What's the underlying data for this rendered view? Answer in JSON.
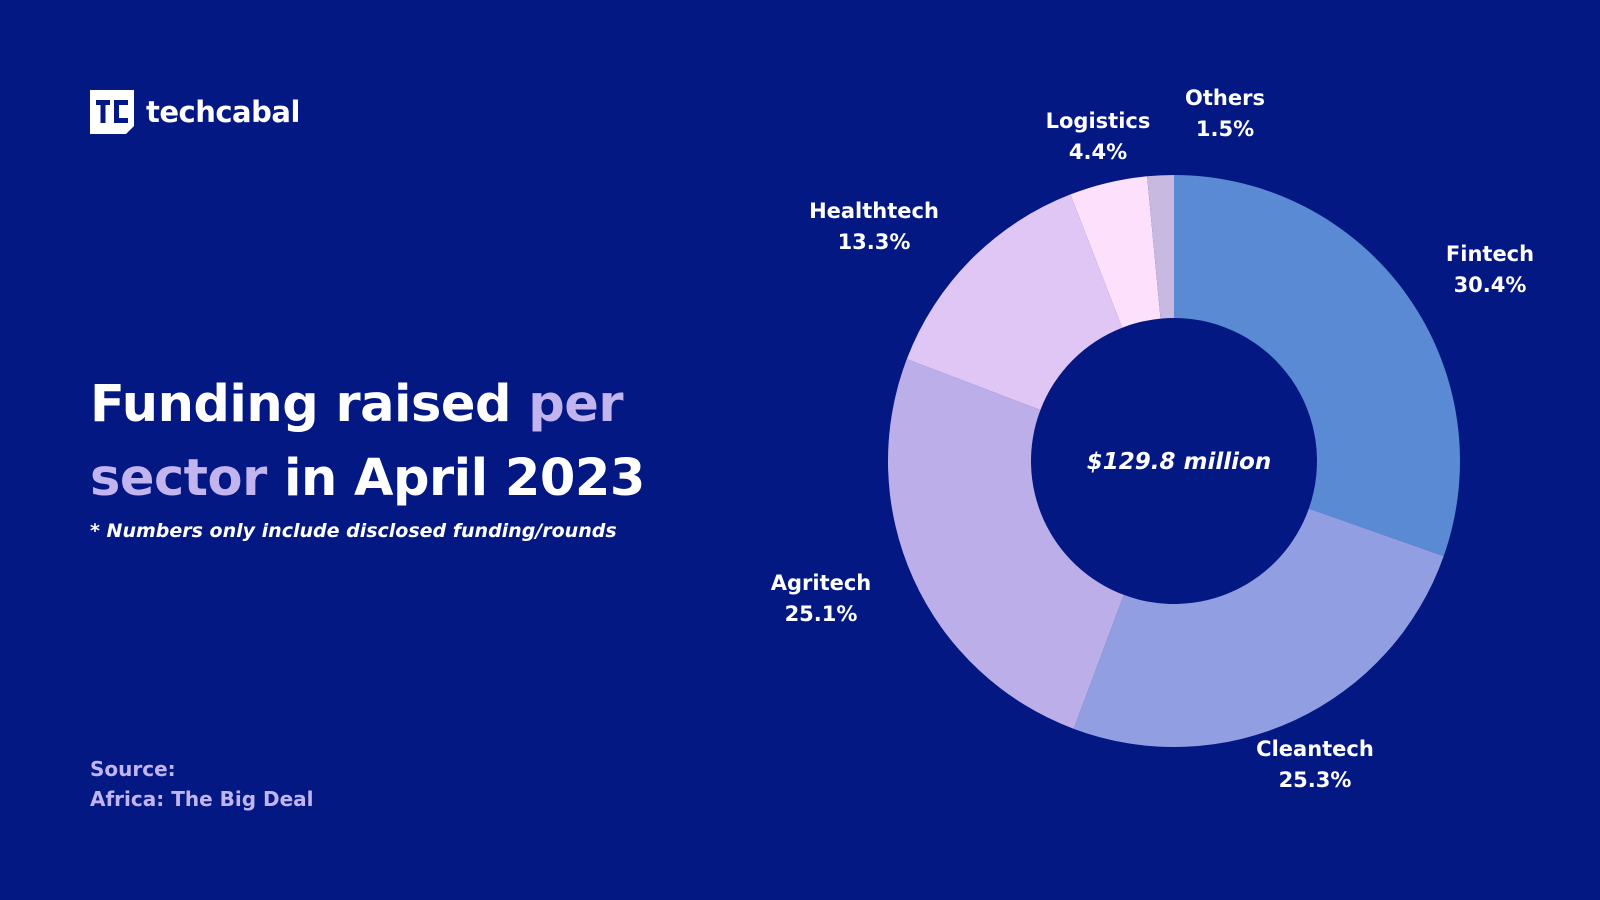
{
  "brand": {
    "name": "techcabal",
    "logo_icon": "techcabal-logo-icon"
  },
  "headline": {
    "part1": "Funding raised ",
    "accent1": "per",
    "accent2": "sector",
    "part2": " in April 2023"
  },
  "footnote": "* Numbers only include disclosed funding/rounds",
  "source": {
    "label": "Source:",
    "name": "Africa: The Big Deal"
  },
  "colors": {
    "background": "#041884",
    "accent": "#c2b4ef"
  },
  "chart_data": {
    "type": "pie",
    "style": "donut",
    "center_label": "$129.8 million",
    "unit": "%",
    "slices": [
      {
        "label": "Fintech",
        "value": 30.4,
        "display": "30.4%",
        "color": "#5a8ad3"
      },
      {
        "label": "Cleantech",
        "value": 25.3,
        "display": "25.3%",
        "color": "#919fe2"
      },
      {
        "label": "Agritech",
        "value": 25.1,
        "display": "25.1%",
        "color": "#bcafe9"
      },
      {
        "label": "Healthtech",
        "value": 13.3,
        "display": "13.3%",
        "color": "#dfc6f4"
      },
      {
        "label": "Logistics",
        "value": 4.4,
        "display": "4.4%",
        "color": "#fde0fb"
      },
      {
        "label": "Others",
        "value": 1.5,
        "display": "1.5%",
        "color": "#c8b9e1"
      }
    ],
    "start_angle_deg": 0,
    "direction": "clockwise"
  }
}
